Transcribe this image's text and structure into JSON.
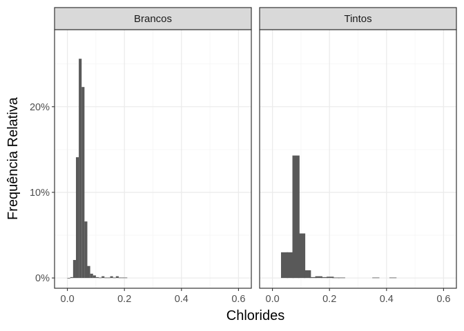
{
  "chart_data": {
    "type": "bar",
    "subtype": "faceted-histogram",
    "xlabel": "Chlorides",
    "ylabel": "Frequência Relativa",
    "xlim": [
      -0.045,
      0.645
    ],
    "ylim": [
      -0.012,
      0.29
    ],
    "x_ticks": [
      0.0,
      0.2,
      0.4,
      0.6
    ],
    "x_tick_labels": [
      "0.0",
      "0.2",
      "0.4",
      "0.6"
    ],
    "y_ticks": [
      0.0,
      0.1,
      0.2
    ],
    "y_tick_labels": [
      "0%",
      "10%",
      "20%"
    ],
    "bin_width": 0.01,
    "grid": true,
    "legend": "none",
    "colors": {
      "bar": "#595959",
      "strip": "#d9d9d9",
      "panel_border": "#333333",
      "grid_major": "#ebebeb",
      "grid_minor": "#f5f5f5"
    },
    "panels": [
      {
        "title": "Brancos",
        "bin_starts": [
          0.0,
          0.01,
          0.02,
          0.03,
          0.04,
          0.05,
          0.06,
          0.07,
          0.08,
          0.09,
          0.1,
          0.11,
          0.12,
          0.13,
          0.14,
          0.15,
          0.16,
          0.17,
          0.18,
          0.19,
          0.2
        ],
        "values": [
          0.0,
          0.001,
          0.021,
          0.141,
          0.256,
          0.223,
          0.066,
          0.014,
          0.005,
          0.003,
          0.001,
          0.0005,
          0.002,
          0.0005,
          0.0005,
          0.002,
          0.0005,
          0.002,
          0.0005,
          0.0005,
          0.0005
        ]
      },
      {
        "title": "Tintos",
        "bin_starts": [
          0.03,
          0.05,
          0.07,
          0.09,
          0.11,
          0.13,
          0.15,
          0.17,
          0.19,
          0.21,
          0.23,
          0.35,
          0.41
        ],
        "bin_width": 0.025,
        "values": [
          0.03,
          0.03,
          0.143,
          0.052,
          0.009,
          0.001,
          0.002,
          0.001,
          0.0015,
          0.0005,
          0.0005,
          0.0005,
          0.0005
        ]
      }
    ]
  }
}
